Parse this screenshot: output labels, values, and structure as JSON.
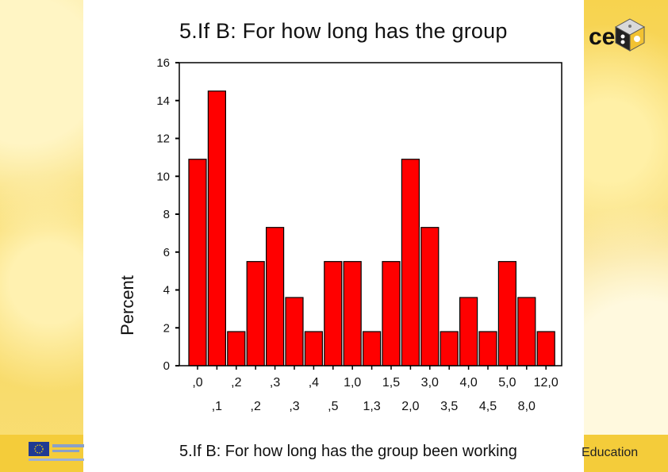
{
  "slide": {
    "title": "5.If B: For how long has the group",
    "logo_text": "ce",
    "footer_caption": "5.If B: For how long has the group been working",
    "footer_right": "Education"
  },
  "chart_data": {
    "type": "bar",
    "title": "",
    "xlabel": "",
    "ylabel": "Percent",
    "ylim": [
      0,
      16
    ],
    "yticks": [
      0,
      2,
      4,
      6,
      8,
      10,
      12,
      14,
      16
    ],
    "grid": false,
    "categories": [
      ",0",
      ",1",
      ",2",
      ",2",
      ",3",
      ",3",
      ",4",
      ",5",
      "1,0",
      "1,3",
      "1,5",
      "2,0",
      "3,0",
      "3,5",
      "4,0",
      "4,5",
      "5,0",
      "8,0",
      "12,0"
    ],
    "values": [
      10.9,
      14.5,
      1.8,
      5.5,
      7.3,
      3.6,
      1.8,
      5.5,
      5.5,
      1.8,
      5.5,
      10.9,
      7.3,
      1.8,
      3.6,
      1.8,
      5.5,
      3.6,
      1.8
    ],
    "bar_color": "#ff0000",
    "bar_stroke": "#000000"
  }
}
